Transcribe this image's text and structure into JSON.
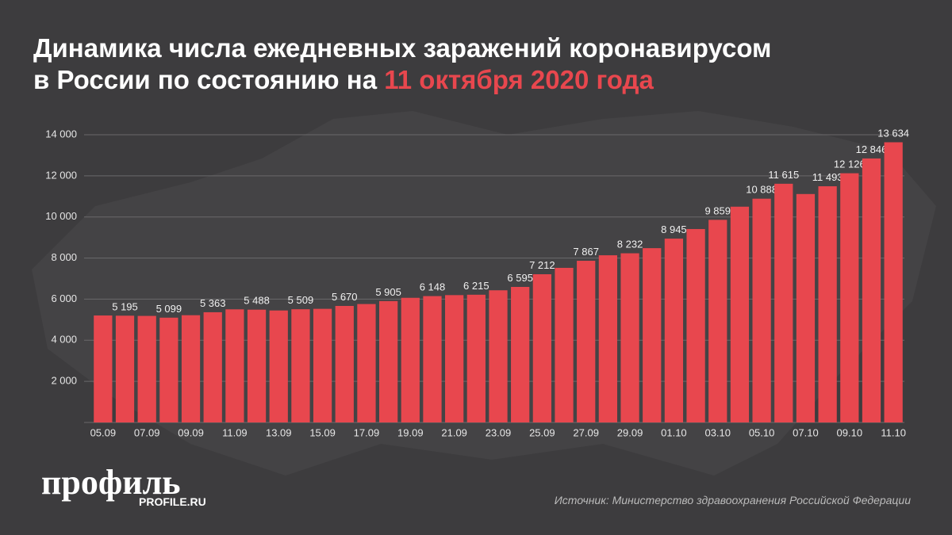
{
  "chart_data": {
    "type": "bar",
    "title": "Динамика числа ежедневных заражений коронавирусом в России по состоянию на",
    "title_date": "11 октября 2020 года",
    "categories": [
      "05.09",
      null,
      "07.09",
      null,
      "09.09",
      null,
      "11.09",
      null,
      "13.09",
      null,
      "15.09",
      null,
      "17.09",
      null,
      "19.09",
      null,
      "21.09",
      null,
      "23.09",
      null,
      "25.09",
      null,
      "27.09",
      null,
      "29.09",
      null,
      "01.10",
      null,
      "03.10",
      null,
      "05.10",
      null,
      "07.10",
      null,
      "09.10",
      null,
      "11.10"
    ],
    "values": [
      5205,
      5195,
      5185,
      5099,
      5218,
      5363,
      5504,
      5488,
      5449,
      5509,
      5529,
      5670,
      5762,
      5905,
      6065,
      6148,
      6196,
      6215,
      6431,
      6595,
      7212,
      7523,
      7867,
      8135,
      8232,
      8481,
      8945,
      9412,
      9859,
      10499,
      10888,
      11615,
      11115,
      11493,
      12126,
      12846,
      13634
    ],
    "value_labels": [
      null,
      "5 195",
      null,
      "5 099",
      null,
      "5 363",
      null,
      "5 488",
      null,
      "5 509",
      null,
      "5 670",
      null,
      "5 905",
      null,
      "6 148",
      null,
      "6 215",
      null,
      "6 595",
      "7 212",
      null,
      "7 867",
      null,
      "8 232",
      null,
      "8 945",
      null,
      "9 859",
      null,
      "10 888",
      "11 615",
      null,
      "11 493",
      "12 126",
      "12 846",
      "13 634"
    ],
    "color": "#e8474e",
    "ylim": [
      0,
      14000
    ],
    "yticks": [
      {
        "value": 2000,
        "label": "2 000"
      },
      {
        "value": 4000,
        "label": "4 000"
      },
      {
        "value": 6000,
        "label": "6 000"
      },
      {
        "value": 8000,
        "label": "8 000"
      },
      {
        "value": 10000,
        "label": "10 000"
      },
      {
        "value": 12000,
        "label": "12 000"
      },
      {
        "value": 14000,
        "label": "14 000"
      }
    ],
    "grid": true,
    "logo": "профиль",
    "logo_url": "PROFILE.RU",
    "source": "Источник: Министерство здравоохранения Российской Федерации"
  }
}
